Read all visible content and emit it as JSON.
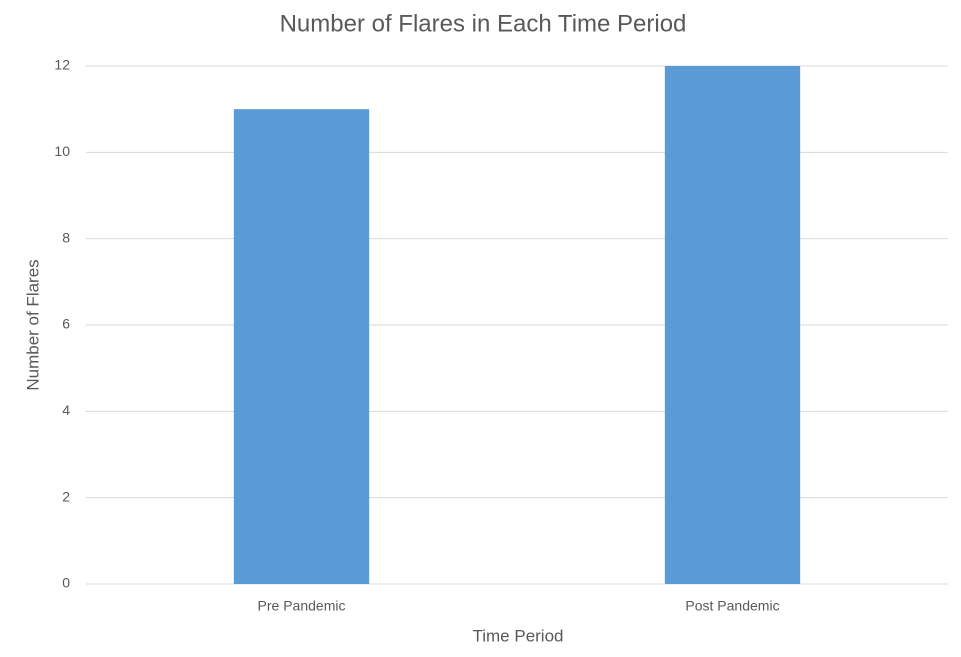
{
  "chart_data": {
    "type": "bar",
    "title": "Number of Flares in Each Time Period",
    "x_label": "Time Period",
    "y_label": "Number of Flares",
    "categories": [
      "Pre Pandemic",
      "Post Pandemic"
    ],
    "values": [
      11,
      12
    ],
    "color": "#5b9bd5",
    "ylim": [
      0,
      12
    ],
    "yticks": [
      0,
      2,
      4,
      6,
      8,
      10,
      12
    ],
    "grid": true
  }
}
